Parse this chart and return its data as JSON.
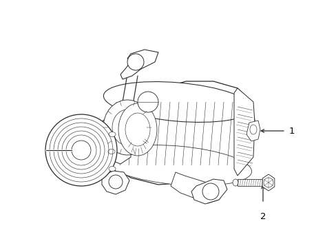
{
  "background_color": "#ffffff",
  "line_color": "#2a2a2a",
  "label_color": "#000000",
  "figsize": [
    4.89,
    3.6
  ],
  "dpi": 100,
  "label1": "1",
  "label2": "2"
}
